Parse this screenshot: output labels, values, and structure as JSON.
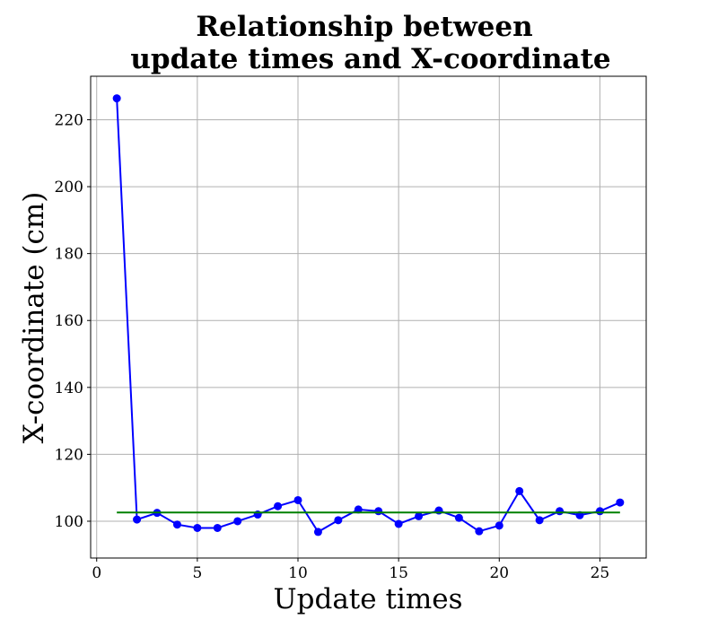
{
  "chart_data": {
    "type": "line",
    "title_lines": [
      "Relationship between",
      "update times and X-coordinate"
    ],
    "xlabel": "Update times",
    "ylabel": "X-coordinate (cm)",
    "xlim": [
      -0.3,
      27.3
    ],
    "ylim": [
      89,
      233
    ],
    "x_ticks": [
      0,
      5,
      10,
      15,
      20,
      25
    ],
    "y_ticks": [
      100,
      120,
      140,
      160,
      180,
      200,
      220
    ],
    "grid": true,
    "legend": "none",
    "series": [
      {
        "color": "#0000ff",
        "marker": "circle",
        "x": [
          1,
          2,
          3,
          4,
          5,
          6,
          7,
          8,
          9,
          10,
          11,
          12,
          13,
          14,
          15,
          16,
          17,
          18,
          19,
          20,
          21,
          22,
          23,
          24,
          25,
          26
        ],
        "y": [
          226.4,
          100.5,
          102.5,
          99.0,
          98.0,
          98.0,
          100.0,
          102.0,
          104.5,
          106.3,
          96.8,
          100.3,
          103.5,
          103.0,
          99.2,
          101.5,
          103.2,
          101.0,
          97.0,
          98.7,
          109.0,
          100.3,
          103.0,
          101.8,
          103.0,
          105.6
        ]
      },
      {
        "color": "#008000",
        "marker": "none",
        "x": [
          1,
          26
        ],
        "y": [
          102.6,
          102.6
        ]
      }
    ]
  }
}
